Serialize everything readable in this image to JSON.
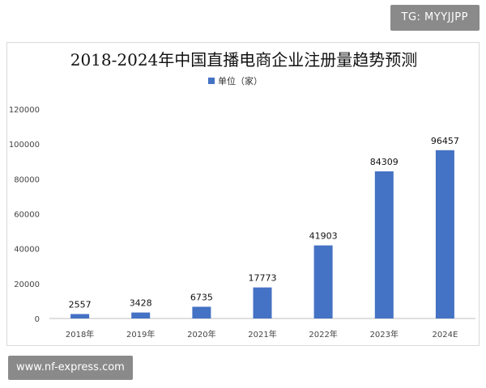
{
  "watermarks": {
    "top": "TG: MYYJJPP",
    "bottom": "www.nf-express.com"
  },
  "chart_data": {
    "type": "bar",
    "title": "2018-2024年中国直播电商企业注册量趋势预测",
    "legend": "单位（家）",
    "legend_position": "top",
    "categories": [
      "2018年",
      "2019年",
      "2020年",
      "2021年",
      "2022年",
      "2023年",
      "2024E"
    ],
    "values": [
      2557,
      3428,
      6735,
      17773,
      41903,
      84309,
      96457
    ],
    "ylim": [
      0,
      120000
    ],
    "yticks": [
      0,
      20000,
      40000,
      60000,
      80000,
      100000,
      120000
    ],
    "grid": false,
    "bar_color": "#4472C4"
  }
}
